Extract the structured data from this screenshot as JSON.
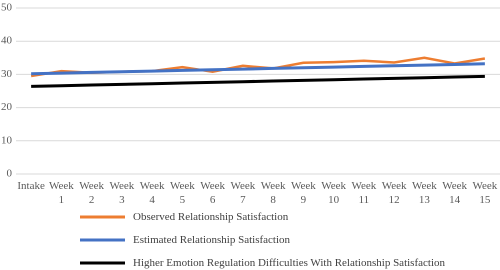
{
  "chart_data": {
    "type": "line",
    "categories": [
      "Intake",
      "Week 1",
      "Week 2",
      "Week 3",
      "Week 4",
      "Week 5",
      "Week 6",
      "Week 7",
      "Week 8",
      "Week 9",
      "Week 10",
      "Week 11",
      "Week 12",
      "Week 13",
      "Week 14",
      "Week 15"
    ],
    "series": [
      {
        "name": "Observed Relationship Satisfaction",
        "color": "#ed7d31",
        "values": [
          29.5,
          31,
          30.5,
          30.8,
          31,
          32.2,
          30.8,
          32.6,
          31.8,
          33.5,
          33.7,
          34.1,
          33.6,
          35,
          33.3,
          34.8
        ]
      },
      {
        "name": "Estimated Relationship Satisfaction",
        "color": "#4472c4",
        "values": [
          30.2,
          30.4,
          30.6,
          30.8,
          31.0,
          31.2,
          31.4,
          31.6,
          31.8,
          32.0,
          32.2,
          32.4,
          32.6,
          32.8,
          33.0,
          33.2
        ]
      },
      {
        "name": "Higher Emotion Regulation Difficulties With Relationship Satisfaction",
        "color": "#000000",
        "values": [
          26.4,
          26.6,
          26.8,
          27.0,
          27.2,
          27.4,
          27.6,
          27.8,
          28.0,
          28.2,
          28.4,
          28.6,
          28.8,
          29.0,
          29.2,
          29.4
        ]
      }
    ],
    "ylim": [
      0,
      50
    ],
    "yticks": [
      0,
      10,
      20,
      30,
      40,
      50
    ],
    "grid": true
  }
}
